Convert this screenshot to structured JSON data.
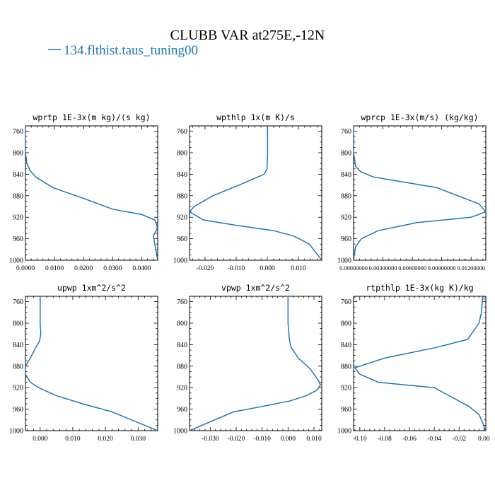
{
  "figure": {
    "title": "CLUBB VAR at275E,-12N",
    "legend_entry": "134.flthist.taus_tuning00",
    "series_color": "#1f77b4",
    "legend_placement": "top-left"
  },
  "chart_data": [
    {
      "type": "line",
      "title": "wprtp  1E-3x(m kg)/(s kg)",
      "y_inverted": true,
      "ylim": [
        1000,
        750
      ],
      "xlim": [
        0,
        0.0455
      ],
      "yticks": [
        "760",
        "800",
        "840",
        "880",
        "920",
        "960",
        "1000"
      ],
      "yticks_values": [
        760,
        800,
        840,
        880,
        920,
        960,
        1000
      ],
      "xticks": [
        "0.0000",
        "0.0100",
        "0.0200",
        "0.0300",
        "0.0400"
      ],
      "xticks_values": [
        0,
        0.01,
        0.02,
        0.03,
        0.04
      ],
      "series": [
        {
          "x": [
            0,
            0,
            0.0005,
            0.0015,
            0.0035,
            0.0095,
            0.02,
            0.03,
            0.04,
            0.0445,
            0.0455,
            0.044,
            0.0445,
            0.0455
          ],
          "y": [
            750,
            800,
            820,
            832,
            845,
            865,
            885,
            905,
            915,
            925,
            940,
            955,
            970,
            1000
          ]
        }
      ]
    },
    {
      "type": "line",
      "title": "wpthlp  1x(m K)/s",
      "y_inverted": true,
      "ylim": [
        1000,
        750
      ],
      "xlim": [
        -0.025,
        0.0175
      ],
      "yticks": [
        "760",
        "800",
        "840",
        "880",
        "920",
        "960",
        "1000"
      ],
      "yticks_values": [
        760,
        800,
        840,
        880,
        920,
        960,
        1000
      ],
      "xticks": [
        "-0.020",
        "-0.010",
        "0.000",
        "0.010"
      ],
      "xticks_values": [
        -0.02,
        -0.01,
        0,
        0.01
      ],
      "series": [
        {
          "x": [
            0.0001,
            0.0001,
            -0.0001,
            -0.001,
            -0.003,
            -0.009,
            -0.0175,
            -0.0235,
            -0.025,
            -0.0205,
            -0.01,
            0.002,
            0.0085,
            0.0135,
            0.0175
          ],
          "y": [
            750,
            800,
            830,
            840,
            845,
            860,
            880,
            900,
            910,
            925,
            935,
            945,
            955,
            970,
            1000
          ]
        }
      ]
    },
    {
      "type": "line",
      "title": "wprcp  1E-3x(m/s) (kg/kg)",
      "y_inverted": true,
      "ylim": [
        1000,
        750
      ],
      "xlim": [
        0,
        0.0135
      ],
      "yticks": [
        "760",
        "800",
        "840",
        "880",
        "920",
        "960",
        "1000"
      ],
      "yticks_values": [
        760,
        800,
        840,
        880,
        920,
        960,
        1000
      ],
      "xticks": [
        "0.00000000",
        "0.00300000",
        "0.00600000",
        "0.00900000",
        "0.01200000"
      ],
      "xticks_values": [
        0,
        0.003,
        0.006,
        0.009,
        0.012
      ],
      "series": [
        {
          "x": [
            0,
            0,
            0.0002,
            0.0007,
            0.002,
            0.0085,
            0.0128,
            0.0135,
            0.012,
            0.0065,
            0.0025,
            0.0008,
            0.0002,
            0
          ],
          "y": [
            750,
            800,
            825,
            835,
            845,
            865,
            895,
            910,
            920,
            930,
            945,
            960,
            975,
            1000
          ]
        }
      ]
    },
    {
      "type": "line",
      "title": "upwp  1xm^2/s^2",
      "y_inverted": true,
      "ylim": [
        1000,
        750
      ],
      "xlim": [
        -0.0045,
        0.036
      ],
      "yticks": [
        "760",
        "800",
        "840",
        "880",
        "920",
        "960",
        "1000"
      ],
      "yticks_values": [
        760,
        800,
        840,
        880,
        920,
        960,
        1000
      ],
      "xticks": [
        "0.000",
        "0.010",
        "0.020",
        "0.030"
      ],
      "xticks_values": [
        0,
        0.01,
        0.02,
        0.03
      ],
      "series": [
        {
          "x": [
            0,
            0,
            0.0002,
            -0.0002,
            -0.0013,
            -0.003,
            -0.0045,
            -0.0045,
            -0.003,
            -0.0005,
            0.005,
            0.013,
            0.022,
            0.036
          ],
          "y": [
            750,
            800,
            820,
            833,
            845,
            865,
            880,
            895,
            910,
            920,
            935,
            950,
            965,
            1000
          ]
        }
      ]
    },
    {
      "type": "line",
      "title": "vpwp  1xm^2/s^2",
      "y_inverted": true,
      "ylim": [
        1000,
        750
      ],
      "xlim": [
        -0.038,
        0.013
      ],
      "yticks": [
        "760",
        "800",
        "840",
        "880",
        "920",
        "960",
        "1000"
      ],
      "yticks_values": [
        760,
        800,
        840,
        880,
        920,
        960,
        1000
      ],
      "xticks": [
        "-0.030",
        "-0.020",
        "-0.010",
        "0.000",
        "0.010"
      ],
      "xticks_values": [
        -0.03,
        -0.02,
        -0.01,
        0,
        0.01
      ],
      "series": [
        {
          "x": [
            0,
            0,
            0.0005,
            0.0012,
            0.004,
            0.0085,
            0.0115,
            0.0125,
            0.011,
            0.007,
            0.0005,
            -0.01,
            -0.021,
            -0.038
          ],
          "y": [
            750,
            800,
            830,
            845,
            865,
            885,
            905,
            915,
            925,
            935,
            945,
            955,
            965,
            1000
          ]
        }
      ]
    },
    {
      "type": "line",
      "title": "rtpthlp  1E-3x(kg K)/kg",
      "y_inverted": true,
      "ylim": [
        1000,
        750
      ],
      "xlim": [
        -0.105,
        0.0015
      ],
      "yticks": [
        "760",
        "800",
        "840",
        "880",
        "920",
        "960",
        "1000"
      ],
      "yticks_values": [
        760,
        800,
        840,
        880,
        920,
        960,
        1000
      ],
      "xticks": [
        "-0.10",
        "-0.08",
        "-0.06",
        "-0.04",
        "-0.02",
        "0.00"
      ],
      "xticks_values": [
        -0.1,
        -0.08,
        -0.06,
        -0.04,
        -0.02,
        0
      ],
      "series": [
        {
          "x": [
            -0.001,
            -0.002,
            -0.004,
            -0.013,
            -0.038,
            -0.08,
            -0.1,
            -0.104,
            -0.1,
            -0.085,
            -0.04,
            -0.012,
            -0.004,
            -0.001,
            0.001
          ],
          "y": [
            750,
            780,
            800,
            830,
            845,
            865,
            880,
            883,
            895,
            910,
            920,
            955,
            970,
            985,
            1000
          ]
        }
      ]
    }
  ]
}
